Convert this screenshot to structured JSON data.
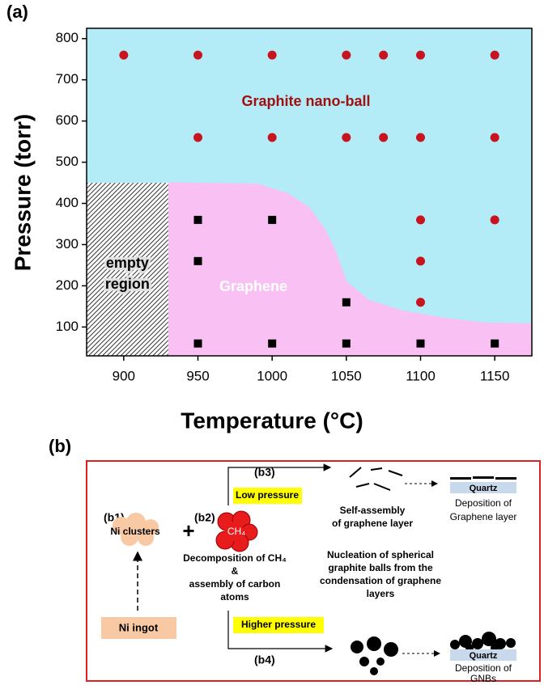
{
  "chart_data": {
    "type": "scatter",
    "panel_label": "(a)",
    "x_label": "Temperature (°C)",
    "y_label": "Pressure (torr)",
    "xlim": [
      875,
      1175
    ],
    "ylim": [
      30,
      825
    ],
    "xticks": [
      900,
      950,
      1000,
      1050,
      1100,
      1150
    ],
    "yticks": [
      100,
      200,
      300,
      400,
      500,
      600,
      700,
      800
    ],
    "background_color": "#b3ecf7",
    "region_color": "#f9c0f4",
    "phase_boundary": {
      "x": [
        930,
        990,
        1010,
        1025,
        1035,
        1042,
        1050,
        1065,
        1088,
        1115,
        1143,
        1175
      ],
      "y": [
        450,
        447,
        425,
        390,
        340,
        290,
        210,
        165,
        139,
        122,
        110,
        108
      ]
    },
    "empty_region": {
      "label": [
        "empty",
        "region"
      ],
      "xlim": [
        875,
        930
      ],
      "ylim": [
        30,
        450
      ]
    },
    "series": [
      {
        "name": "Graphite nano-ball",
        "color": "#c8141e",
        "marker": "circle",
        "x": [
          900,
          950,
          1000,
          1050,
          1075,
          1100,
          1150,
          950,
          1000,
          1050,
          1075,
          1100,
          1150,
          1100,
          1150,
          1100,
          1100
        ],
        "values": [
          760,
          760,
          760,
          760,
          760,
          760,
          760,
          560,
          560,
          560,
          560,
          560,
          560,
          360,
          360,
          260,
          160
        ]
      },
      {
        "name": "Graphene",
        "color": "#000000",
        "marker": "square",
        "x": [
          950,
          1000,
          950,
          1050,
          950,
          1000,
          1050,
          1100,
          1150
        ],
        "values": [
          360,
          360,
          260,
          160,
          60,
          60,
          60,
          60,
          60
        ]
      }
    ]
  },
  "diagram": {
    "label": "(b)",
    "b1": {
      "label": "(b1)",
      "text": "Ni clusters"
    },
    "plus": "+",
    "ingot": "Ni ingot",
    "b2": {
      "label": "(b2)",
      "molecule": "CH₄",
      "text": [
        "Decomposition of CH₄",
        "&",
        "assembly of carbon",
        "atoms"
      ]
    },
    "b3": {
      "label": "(b3)",
      "condition": "Low pressure",
      "process": [
        "Self-assembly",
        "of graphene  layer"
      ],
      "substrate": "Quartz",
      "result": [
        "Deposition of",
        "Graphene layer"
      ]
    },
    "b4": {
      "label": "(b4)",
      "condition": "Higher pressure",
      "process": [
        "Nucleation of spherical",
        "graphite balls from the",
        "condensation of graphene",
        "layers"
      ],
      "substrate": "Quartz",
      "result": [
        "Deposition of",
        "GNBs"
      ]
    }
  }
}
